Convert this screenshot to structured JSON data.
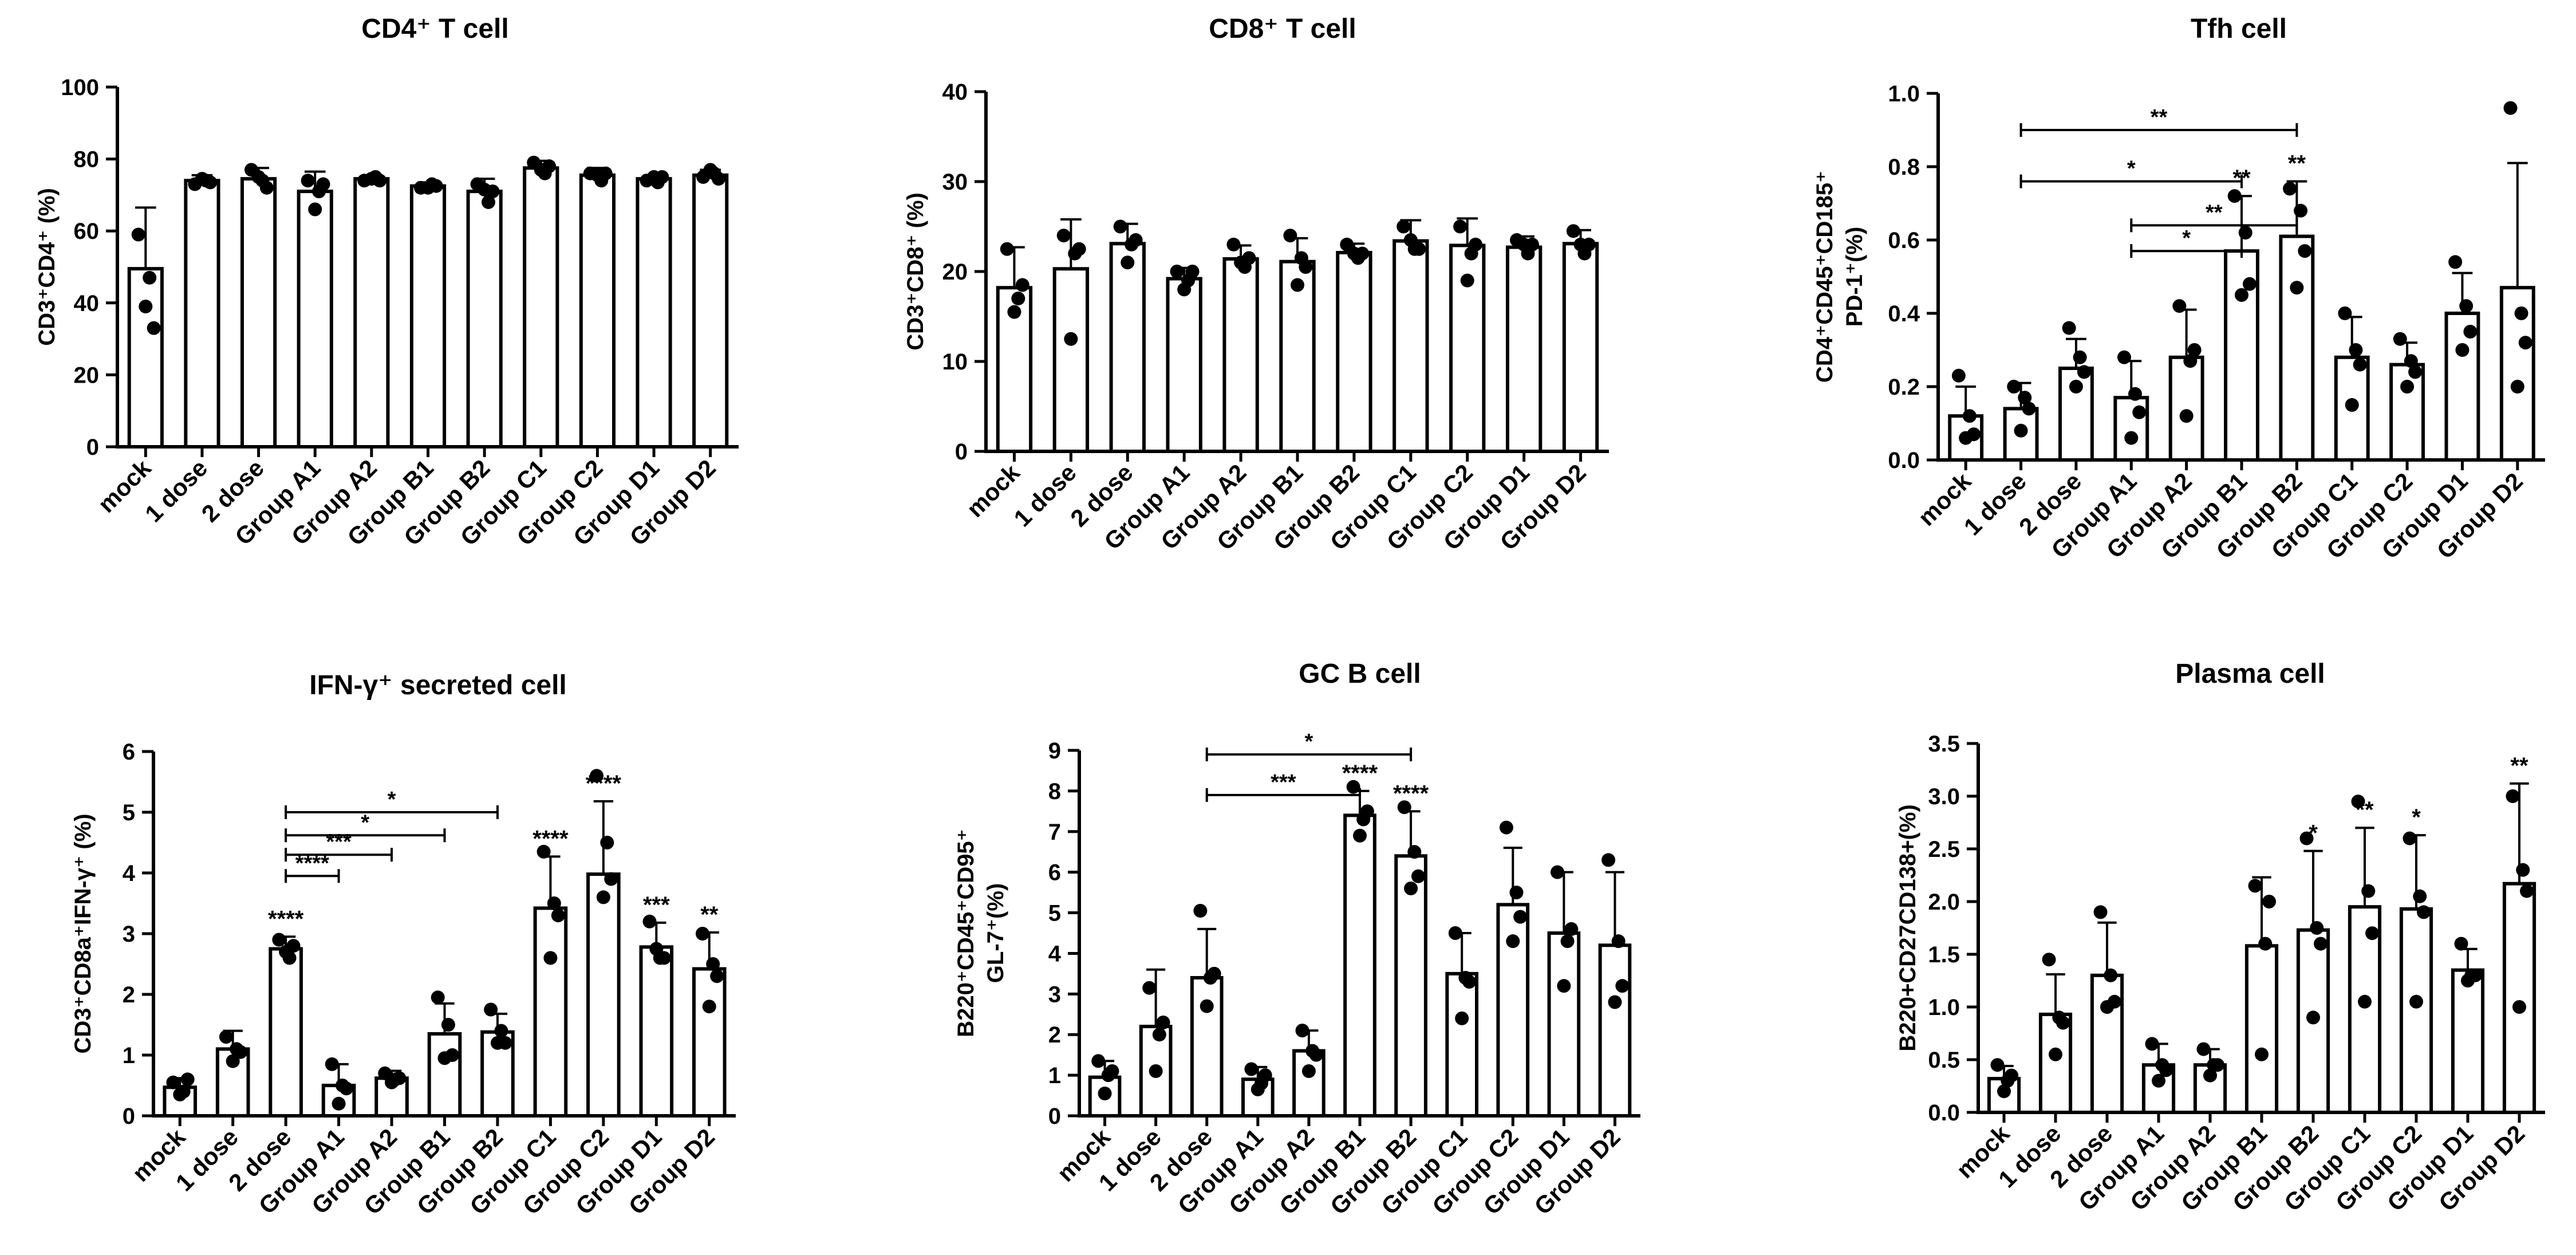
{
  "categories": [
    "mock",
    "1 dose",
    "2 dose",
    "Group A1",
    "Group A2",
    "Group B1",
    "Group B2",
    "Group C1",
    "Group C2",
    "Group D1",
    "Group D2"
  ],
  "chart_data": [
    {
      "type": "bar",
      "title": "CD4⁺ T cell",
      "ylabel": "CD3⁺CD4⁺ (%)",
      "ylim": [
        0,
        100
      ],
      "yticks": [
        "0",
        "20",
        "40",
        "60",
        "80",
        "100"
      ],
      "values": [
        49.5,
        74,
        74.5,
        71,
        74.5,
        72.5,
        71,
        77.5,
        75.5,
        74.5,
        75.5
      ],
      "errors": [
        17,
        1.5,
        3,
        5.5,
        0.8,
        1,
        3.5,
        2,
        2,
        1,
        1.5
      ],
      "points": [
        [
          59,
          47,
          39,
          33
        ],
        [
          73,
          74,
          74.5,
          73.5
        ],
        [
          77,
          74,
          75,
          72
        ],
        [
          74,
          71,
          66,
          73
        ],
        [
          74,
          75,
          74.5,
          74
        ],
        [
          72,
          73,
          72,
          72.5
        ],
        [
          73,
          68,
          71.5,
          71
        ],
        [
          79,
          76,
          77,
          78
        ],
        [
          76,
          74,
          75.5,
          76
        ],
        [
          74,
          73.5,
          75,
          75
        ],
        [
          75,
          76,
          77,
          74.5
        ]
      ],
      "significance": [],
      "brackets": []
    },
    {
      "type": "bar",
      "title": "CD8⁺ T cell",
      "ylabel": "CD3⁺CD8⁺ (%)",
      "ylim": [
        0,
        40
      ],
      "yticks": [
        "0",
        "10",
        "20",
        "30",
        "40"
      ],
      "values": [
        18.2,
        20.3,
        23.1,
        19.2,
        21.4,
        21.1,
        22.1,
        23.4,
        22.9,
        22.7,
        23.1
      ],
      "errors": [
        4.5,
        5.5,
        2.2,
        1.2,
        1.5,
        2.6,
        1,
        2.3,
        3,
        1.2,
        1.5
      ],
      "points": [
        [
          22.5,
          17,
          15.5,
          18.5
        ],
        [
          24,
          22,
          12.5,
          22.5
        ],
        [
          25,
          23,
          21,
          23.5
        ],
        [
          20,
          19,
          18,
          20
        ],
        [
          23,
          20.5,
          21,
          21.5
        ],
        [
          24,
          21.5,
          18.5,
          20.5
        ],
        [
          23,
          21.5,
          22,
          22
        ],
        [
          25,
          22.5,
          23.5,
          22.5
        ],
        [
          25,
          22,
          19,
          23
        ],
        [
          23.5,
          22,
          23,
          23
        ],
        [
          24.5,
          22,
          23,
          23
        ]
      ],
      "significance": [],
      "brackets": []
    },
    {
      "type": "bar",
      "title": "Tfh cell",
      "ylabel": "CD4⁺CD45⁺CD185⁺ PD-1⁺(%)",
      "ylim": [
        0,
        1.0
      ],
      "yticks": [
        "0.0",
        "0.2",
        "0.4",
        "0.6",
        "0.8",
        "1.0"
      ],
      "values": [
        0.12,
        0.14,
        0.25,
        0.17,
        0.28,
        0.57,
        0.61,
        0.28,
        0.26,
        0.4,
        0.47
      ],
      "errors": [
        0.08,
        0.07,
        0.08,
        0.1,
        0.13,
        0.15,
        0.15,
        0.11,
        0.06,
        0.11,
        0.34
      ],
      "points": [
        [
          0.23,
          0.12,
          0.06,
          0.07
        ],
        [
          0.2,
          0.17,
          0.08,
          0.14
        ],
        [
          0.36,
          0.28,
          0.2,
          0.24
        ],
        [
          0.28,
          0.18,
          0.06,
          0.13
        ],
        [
          0.42,
          0.27,
          0.12,
          0.3
        ],
        [
          0.72,
          0.62,
          0.45,
          0.48
        ],
        [
          0.74,
          0.68,
          0.47,
          0.57
        ],
        [
          0.4,
          0.3,
          0.15,
          0.26
        ],
        [
          0.33,
          0.27,
          0.2,
          0.24
        ],
        [
          0.54,
          0.42,
          0.3,
          0.35
        ],
        [
          0.96,
          0.4,
          0.2,
          0.32
        ]
      ],
      "significance": [
        "",
        "",
        "",
        "",
        "",
        "**",
        "**",
        "",
        "",
        "",
        ""
      ],
      "brackets": [
        {
          "from": "1 dose",
          "to": "Group B2",
          "label": "**"
        },
        {
          "from": "1 dose",
          "to": "Group B1",
          "label": "*"
        },
        {
          "from": "Group A1",
          "to": "Group B2",
          "label": "**"
        },
        {
          "from": "Group A1",
          "to": "Group B1",
          "label": "*"
        }
      ]
    },
    {
      "type": "bar",
      "title": "IFN-γ⁺ secreted cell",
      "ylabel": "CD3⁺CD8a⁺IFN-γ⁺ (%)",
      "ylim": [
        0,
        6
      ],
      "yticks": [
        "0",
        "1",
        "2",
        "3",
        "4",
        "5",
        "6"
      ],
      "values": [
        0.47,
        1.1,
        2.75,
        0.5,
        0.62,
        1.35,
        1.38,
        3.42,
        3.98,
        2.78,
        2.42
      ],
      "errors": [
        0.15,
        0.3,
        0.2,
        0.35,
        0.12,
        0.5,
        0.3,
        0.85,
        1.2,
        0.4,
        0.6
      ],
      "points": [
        [
          0.55,
          0.4,
          0.35,
          0.6
        ],
        [
          1.3,
          1.1,
          0.9,
          1.05
        ],
        [
          2.9,
          2.6,
          2.7,
          2.8
        ],
        [
          0.85,
          0.5,
          0.2,
          0.45
        ],
        [
          0.7,
          0.6,
          0.55,
          0.62
        ],
        [
          1.95,
          1.5,
          0.95,
          1.0
        ],
        [
          1.75,
          1.4,
          1.2,
          1.2
        ],
        [
          4.35,
          3.5,
          2.6,
          3.3
        ],
        [
          5.6,
          4.5,
          3.6,
          3.9
        ],
        [
          3.2,
          2.6,
          2.75,
          2.6
        ],
        [
          3.0,
          2.5,
          1.8,
          2.3
        ]
      ],
      "significance": [
        "",
        "",
        "****",
        "",
        "",
        "",
        "",
        "****",
        "****",
        "***",
        "**"
      ],
      "brackets": [
        {
          "from": "2 dose",
          "to": "Group B2",
          "label": "*"
        },
        {
          "from": "2 dose",
          "to": "Group B1",
          "label": "*"
        },
        {
          "from": "2 dose",
          "to": "Group A2",
          "label": "***"
        },
        {
          "from": "2 dose",
          "to": "Group A1",
          "label": "****"
        }
      ]
    },
    {
      "type": "bar",
      "title": "GC B cell",
      "ylabel": "B220⁺CD45⁺CD95⁺ GL-7⁺(%)",
      "ylim": [
        0,
        9
      ],
      "yticks": [
        "0",
        "1",
        "2",
        "3",
        "4",
        "5",
        "6",
        "7",
        "8",
        "9"
      ],
      "values": [
        0.95,
        2.2,
        3.4,
        0.9,
        1.6,
        7.4,
        6.4,
        3.5,
        5.2,
        4.5,
        4.2
      ],
      "errors": [
        0.4,
        1.4,
        1.2,
        0.3,
        0.5,
        0.6,
        1.1,
        1.0,
        1.4,
        1.5,
        1.8
      ],
      "points": [
        [
          1.35,
          1.0,
          0.55,
          1.1
        ],
        [
          3.15,
          2.0,
          1.1,
          2.3
        ],
        [
          5.05,
          3.4,
          2.7,
          3.5
        ],
        [
          1.15,
          0.8,
          0.65,
          1.0
        ],
        [
          2.1,
          1.6,
          1.1,
          1.5
        ],
        [
          8.1,
          7.3,
          6.9,
          7.5
        ],
        [
          7.6,
          6.5,
          5.6,
          5.9
        ],
        [
          4.5,
          3.4,
          2.4,
          3.3
        ],
        [
          7.1,
          5.5,
          4.3,
          4.9
        ],
        [
          6.0,
          4.3,
          3.2,
          4.6
        ],
        [
          6.3,
          4.3,
          2.8,
          3.2
        ]
      ],
      "significance": [
        "",
        "",
        "",
        "",
        "",
        "****",
        "****",
        "",
        "",
        "",
        ""
      ],
      "brackets": [
        {
          "from": "2 dose",
          "to": "Group B2",
          "label": "*"
        },
        {
          "from": "2 dose",
          "to": "Group B1",
          "label": "***"
        }
      ]
    },
    {
      "type": "bar",
      "title": "Plasma cell",
      "ylabel": "B220+CD27CD138+(%)",
      "ylim": [
        0,
        3.5
      ],
      "yticks": [
        "0.0",
        "0.5",
        "1.0",
        "1.5",
        "2.0",
        "2.5",
        "3.0",
        "3.5"
      ],
      "values": [
        0.32,
        0.93,
        1.3,
        0.45,
        0.45,
        1.58,
        1.73,
        1.95,
        1.93,
        1.35,
        2.17
      ],
      "errors": [
        0.12,
        0.38,
        0.5,
        0.2,
        0.15,
        0.65,
        0.75,
        0.75,
        0.7,
        0.2,
        0.95
      ],
      "points": [
        [
          0.45,
          0.3,
          0.2,
          0.35
        ],
        [
          1.45,
          0.9,
          0.55,
          0.85
        ],
        [
          1.9,
          1.3,
          1.0,
          1.05
        ],
        [
          0.65,
          0.45,
          0.3,
          0.4
        ],
        [
          0.6,
          0.45,
          0.35,
          0.45
        ],
        [
          2.15,
          1.6,
          0.55,
          2.0
        ],
        [
          2.6,
          1.75,
          0.9,
          1.6
        ],
        [
          2.95,
          2.1,
          1.05,
          1.7
        ],
        [
          2.6,
          2.05,
          1.05,
          1.9
        ],
        [
          1.6,
          1.3,
          1.25,
          1.3
        ],
        [
          3.0,
          2.3,
          1.0,
          2.1
        ]
      ],
      "significance": [
        "",
        "",
        "",
        "",
        "",
        "",
        "*",
        "**",
        "*",
        "",
        "**"
      ],
      "brackets": []
    }
  ]
}
